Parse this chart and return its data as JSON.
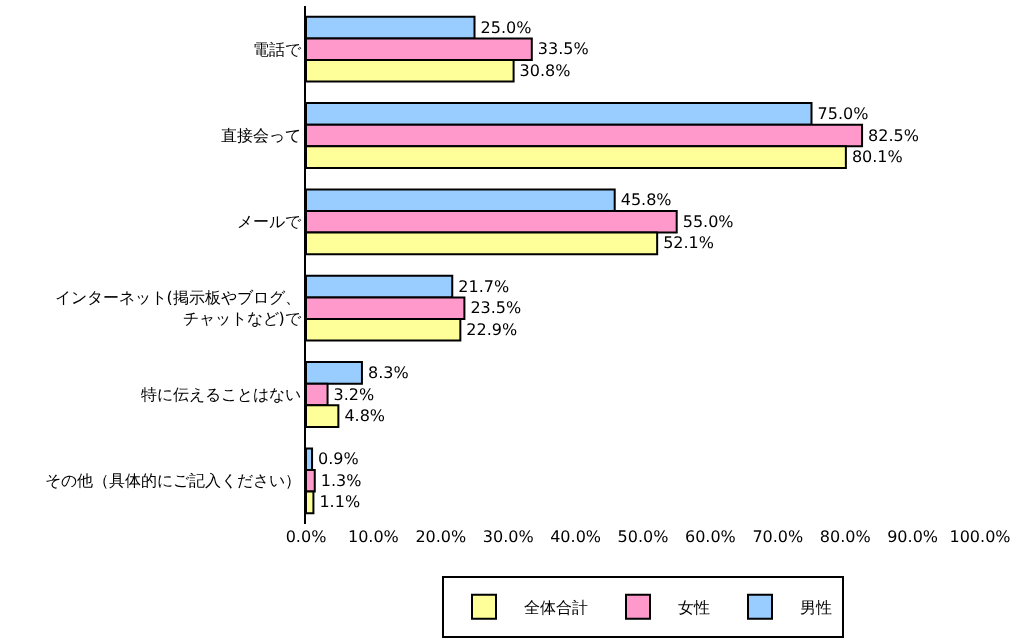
{
  "chart_data": {
    "type": "bar",
    "orientation": "horizontal",
    "categories": [
      "電話で",
      "直接会って",
      "メールで",
      "インターネット(掲示板やブログ、チャットなど)で",
      "特に伝えることはない",
      "その他（具体的にご記入ください）"
    ],
    "series": [
      {
        "name": "男性",
        "color": "#99ccff",
        "values": [
          25.0,
          75.0,
          45.8,
          21.7,
          8.3,
          0.9
        ],
        "value_labels": [
          "25.0%",
          "75.0%",
          "45.8%",
          "21.7%",
          "8.3%",
          "0.9%"
        ]
      },
      {
        "name": "女性",
        "color": "#ff99cc",
        "values": [
          33.5,
          82.5,
          55.0,
          23.5,
          3.2,
          1.3
        ],
        "value_labels": [
          "33.5%",
          "82.5%",
          "55.0%",
          "23.5%",
          "3.2%",
          "1.3%"
        ]
      },
      {
        "name": "全体合計",
        "color": "#ffff99",
        "values": [
          30.8,
          80.1,
          52.1,
          22.9,
          4.8,
          1.1
        ],
        "value_labels": [
          "30.8%",
          "80.1%",
          "52.1%",
          "22.9%",
          "4.8%",
          "1.1%"
        ]
      }
    ],
    "xlim": [
      0,
      100
    ],
    "xticks": [
      {
        "value": 0,
        "label": "0.0%"
      },
      {
        "value": 10,
        "label": "10.0%"
      },
      {
        "value": 20,
        "label": "20.0%"
      },
      {
        "value": 30,
        "label": "30.0%"
      },
      {
        "value": 40,
        "label": "40.0%"
      },
      {
        "value": 50,
        "label": "50.0%"
      },
      {
        "value": 60,
        "label": "60.0%"
      },
      {
        "value": 70,
        "label": "70.0%"
      },
      {
        "value": 80,
        "label": "80.0%"
      },
      {
        "value": 90,
        "label": "90.0%"
      },
      {
        "value": 100,
        "label": "100.0%"
      }
    ],
    "grid": false,
    "legend": "bottom"
  }
}
